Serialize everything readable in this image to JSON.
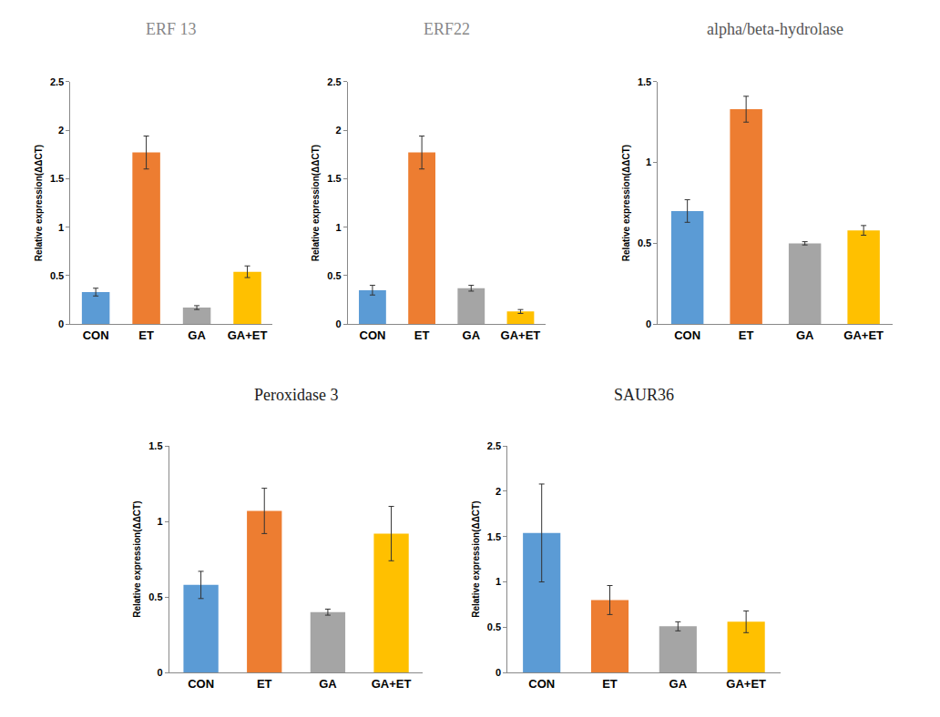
{
  "chart_data": [
    {
      "type": "bar",
      "title": "ERF 13",
      "categories": [
        "CON",
        "ET",
        "GA",
        "GA+ET"
      ],
      "values": [
        0.33,
        1.77,
        0.17,
        0.54
      ],
      "errors": [
        0.04,
        0.17,
        0.02,
        0.06
      ],
      "colors": [
        "#5b9bd5",
        "#ed7d31",
        "#a5a5a5",
        "#ffc000"
      ],
      "y_label": "Relative expression(ΔΔCT)",
      "ylim": [
        0,
        2.5
      ],
      "yticks": [
        0,
        0.5,
        1,
        1.5,
        2,
        2.5
      ],
      "grid": false
    },
    {
      "type": "bar",
      "title": "ERF22",
      "categories": [
        "CON",
        "ET",
        "GA",
        "GA+ET"
      ],
      "values": [
        0.35,
        1.77,
        0.37,
        0.13
      ],
      "errors": [
        0.05,
        0.17,
        0.03,
        0.02
      ],
      "colors": [
        "#5b9bd5",
        "#ed7d31",
        "#a5a5a5",
        "#ffc000"
      ],
      "y_label": "Relative expression(ΔΔCT)",
      "ylim": [
        0,
        2.5
      ],
      "yticks": [
        0,
        0.5,
        1,
        1.5,
        2,
        2.5
      ],
      "grid": false
    },
    {
      "type": "bar",
      "title": "alpha/beta-hydrolase",
      "categories": [
        "CON",
        "ET",
        "GA",
        "GA+ET"
      ],
      "values": [
        0.7,
        1.33,
        0.5,
        0.58
      ],
      "errors": [
        0.07,
        0.08,
        0.01,
        0.03
      ],
      "colors": [
        "#5b9bd5",
        "#ed7d31",
        "#a5a5a5",
        "#ffc000"
      ],
      "y_label": "Relative expression(ΔΔCT)",
      "ylim": [
        0,
        1.5
      ],
      "yticks": [
        0,
        0.5,
        1,
        1.5
      ],
      "grid": false
    },
    {
      "type": "bar",
      "title": "Peroxidase 3",
      "categories": [
        "CON",
        "ET",
        "GA",
        "GA+ET"
      ],
      "values": [
        0.58,
        1.07,
        0.4,
        0.92
      ],
      "errors": [
        0.09,
        0.15,
        0.02,
        0.18
      ],
      "colors": [
        "#5b9bd5",
        "#ed7d31",
        "#a5a5a5",
        "#ffc000"
      ],
      "y_label": "Relative expression(ΔΔCT)",
      "ylim": [
        0,
        1.5
      ],
      "yticks": [
        0,
        0.5,
        1,
        1.5
      ],
      "grid": false
    },
    {
      "type": "bar",
      "title": "SAUR36",
      "categories": [
        "CON",
        "ET",
        "GA",
        "GA+ET"
      ],
      "values": [
        1.54,
        0.8,
        0.51,
        0.56
      ],
      "errors": [
        0.54,
        0.16,
        0.05,
        0.12
      ],
      "colors": [
        "#5b9bd5",
        "#ed7d31",
        "#a5a5a5",
        "#ffc000"
      ],
      "y_label": "Relative expression(ΔΔCT)",
      "ylim": [
        0,
        2.5
      ],
      "yticks": [
        0,
        0.5,
        1,
        1.5,
        2,
        2.5
      ],
      "grid": false
    }
  ]
}
